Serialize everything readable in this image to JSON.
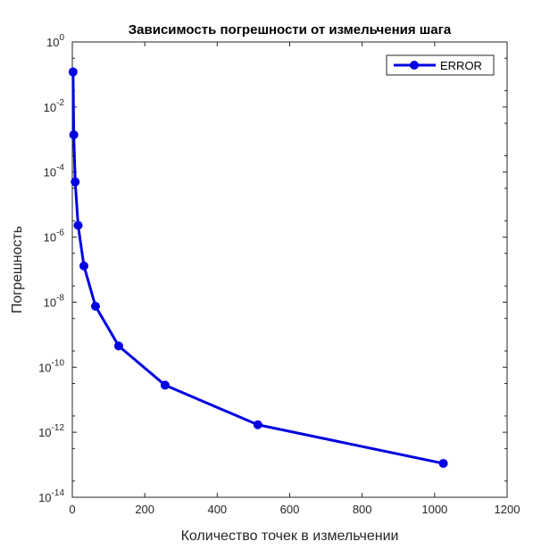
{
  "chart_data": {
    "type": "line",
    "title": "Зависимость погрешности от измельчения шага",
    "xlabel": "Количество точек в измельчении",
    "ylabel": "Погрешность",
    "xlim": [
      0,
      1200
    ],
    "ylim": [
      1e-14,
      1
    ],
    "yscale": "log",
    "grid": false,
    "legend_position": "top-right",
    "x_ticks": [
      0,
      200,
      400,
      600,
      800,
      1000,
      1200
    ],
    "x_tick_labels": [
      "0",
      "200",
      "400",
      "600",
      "800",
      "1000",
      "1200"
    ],
    "y_ticks": [
      1e-14,
      1e-12,
      1e-10,
      1e-08,
      1e-06,
      0.0001,
      0.01,
      1
    ],
    "y_tick_labels": [
      {
        "base": "10",
        "exp": "-14"
      },
      {
        "base": "10",
        "exp": "-12"
      },
      {
        "base": "10",
        "exp": "-10"
      },
      {
        "base": "10",
        "exp": "-8"
      },
      {
        "base": "10",
        "exp": "-6"
      },
      {
        "base": "10",
        "exp": "-4"
      },
      {
        "base": "10",
        "exp": "-2"
      },
      {
        "base": "10",
        "exp": "0"
      }
    ],
    "series": [
      {
        "name": "ERROR",
        "color": "#0000e0",
        "marker": "circle",
        "x": [
          2,
          4,
          8,
          16,
          32,
          64,
          128,
          256,
          512,
          1024
        ],
        "y": [
          0.12,
          0.0014,
          5e-05,
          2.3e-06,
          1.3e-07,
          7.5e-09,
          4.5e-10,
          2.8e-11,
          1.7e-12,
          1.1e-13
        ]
      }
    ]
  }
}
